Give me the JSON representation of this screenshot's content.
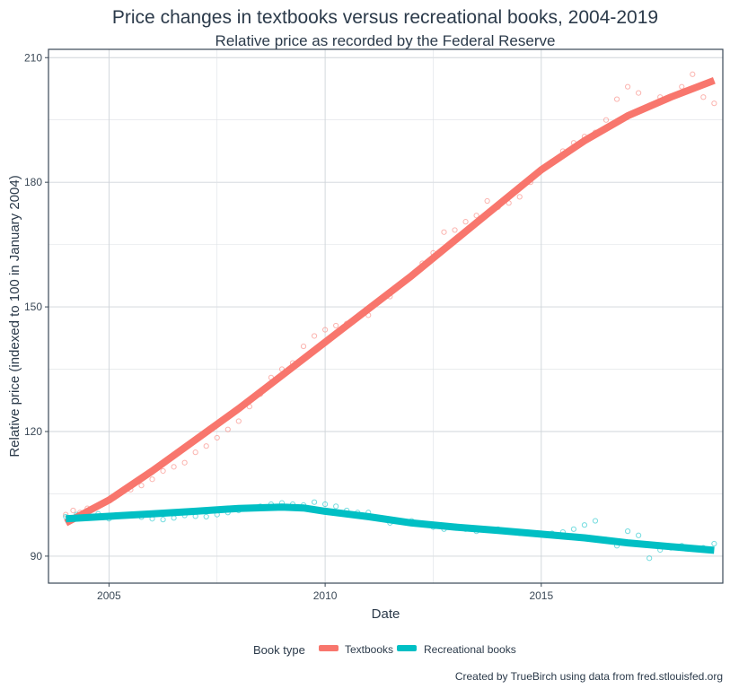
{
  "chart_data": {
    "type": "scatter",
    "title": "Price changes in textbooks versus recreational books, 2004-2019",
    "subtitle": "Relative price as recorded by the Federal Reserve",
    "xlabel": "Date",
    "ylabel": "Relative price (indexed to 100 in January 2004)",
    "caption": "Created by TrueBirch using data from fred.stlouisfed.org",
    "xlim": [
      2003.6,
      2019.2
    ],
    "ylim": [
      83.5,
      212
    ],
    "x_ticks": [
      2005,
      2010,
      2015
    ],
    "y_ticks": [
      90,
      120,
      150,
      180,
      210
    ],
    "grid": true,
    "legend": {
      "title": "Book type",
      "placement": "bottom"
    },
    "series": [
      {
        "name": "Textbooks",
        "color": "#f8766d",
        "trend": [
          [
            2004.0,
            98.0
          ],
          [
            2005.0,
            103.5
          ],
          [
            2006.0,
            110.5
          ],
          [
            2007.0,
            118.0
          ],
          [
            2008.0,
            125.5
          ],
          [
            2009.0,
            133.5
          ],
          [
            2010.0,
            141.5
          ],
          [
            2011.0,
            149.5
          ],
          [
            2012.0,
            157.5
          ],
          [
            2013.0,
            166.0
          ],
          [
            2014.0,
            174.5
          ],
          [
            2015.0,
            183.0
          ],
          [
            2016.0,
            190.0
          ],
          [
            2017.0,
            196.0
          ],
          [
            2018.0,
            200.5
          ],
          [
            2019.0,
            204.5
          ]
        ],
        "points": [
          [
            2004.0,
            100.0
          ],
          [
            2004.17,
            101.0
          ],
          [
            2004.33,
            100.5
          ],
          [
            2004.5,
            101.5
          ],
          [
            2004.75,
            102.0
          ],
          [
            2005.0,
            103.5
          ],
          [
            2005.25,
            105.0
          ],
          [
            2005.5,
            106.0
          ],
          [
            2005.75,
            107.0
          ],
          [
            2006.0,
            108.5
          ],
          [
            2006.25,
            110.5
          ],
          [
            2006.5,
            111.5
          ],
          [
            2006.75,
            112.5
          ],
          [
            2007.0,
            115.0
          ],
          [
            2007.25,
            116.5
          ],
          [
            2007.5,
            118.5
          ],
          [
            2007.75,
            120.5
          ],
          [
            2008.0,
            122.5
          ],
          [
            2008.25,
            126.0
          ],
          [
            2008.5,
            129.0
          ],
          [
            2008.75,
            133.0
          ],
          [
            2009.0,
            135.0
          ],
          [
            2009.25,
            136.5
          ],
          [
            2009.5,
            140.5
          ],
          [
            2009.75,
            143.0
          ],
          [
            2010.0,
            144.5
          ],
          [
            2010.25,
            145.5
          ],
          [
            2010.5,
            146.0
          ],
          [
            2010.75,
            147.5
          ],
          [
            2011.0,
            148.0
          ],
          [
            2011.25,
            151.5
          ],
          [
            2011.5,
            152.5
          ],
          [
            2011.75,
            155.5
          ],
          [
            2012.0,
            157.5
          ],
          [
            2012.25,
            160.5
          ],
          [
            2012.5,
            163.0
          ],
          [
            2012.75,
            168.0
          ],
          [
            2013.0,
            168.5
          ],
          [
            2013.25,
            170.5
          ],
          [
            2013.5,
            172.0
          ],
          [
            2013.75,
            175.5
          ],
          [
            2014.0,
            174.0
          ],
          [
            2014.25,
            175.0
          ],
          [
            2014.5,
            176.5
          ],
          [
            2014.75,
            180.0
          ],
          [
            2015.0,
            183.0
          ],
          [
            2015.25,
            185.0
          ],
          [
            2015.5,
            187.5
          ],
          [
            2015.75,
            189.5
          ],
          [
            2016.0,
            191.0
          ],
          [
            2016.25,
            192.0
          ],
          [
            2016.5,
            195.0
          ],
          [
            2016.75,
            200.0
          ],
          [
            2017.0,
            203.0
          ],
          [
            2017.25,
            201.5
          ],
          [
            2017.5,
            198.5
          ],
          [
            2017.75,
            200.5
          ],
          [
            2018.0,
            200.5
          ],
          [
            2018.25,
            203.0
          ],
          [
            2018.5,
            206.0
          ],
          [
            2018.75,
            200.5
          ],
          [
            2019.0,
            199.0
          ]
        ]
      },
      {
        "name": "Recreational books",
        "color": "#00bfc4",
        "trend": [
          [
            2004.0,
            99.0
          ],
          [
            2005.0,
            99.6
          ],
          [
            2006.0,
            100.2
          ],
          [
            2007.0,
            100.8
          ],
          [
            2008.0,
            101.5
          ],
          [
            2009.0,
            101.8
          ],
          [
            2009.5,
            101.6
          ],
          [
            2010.0,
            100.8
          ],
          [
            2011.0,
            99.5
          ],
          [
            2012.0,
            98.0
          ],
          [
            2013.0,
            97.0
          ],
          [
            2014.0,
            96.2
          ],
          [
            2015.0,
            95.3
          ],
          [
            2016.0,
            94.4
          ],
          [
            2017.0,
            93.2
          ],
          [
            2018.0,
            92.3
          ],
          [
            2019.0,
            91.4
          ]
        ],
        "points": [
          [
            2004.0,
            99.5
          ],
          [
            2004.25,
            100.0
          ],
          [
            2004.5,
            99.8
          ],
          [
            2004.75,
            100.2
          ],
          [
            2005.0,
            99.0
          ],
          [
            2005.25,
            99.6
          ],
          [
            2005.5,
            100.0
          ],
          [
            2005.75,
            99.4
          ],
          [
            2006.0,
            99.0
          ],
          [
            2006.25,
            98.8
          ],
          [
            2006.5,
            99.2
          ],
          [
            2006.75,
            99.8
          ],
          [
            2007.0,
            99.6
          ],
          [
            2007.25,
            99.5
          ],
          [
            2007.5,
            100.0
          ],
          [
            2007.75,
            100.5
          ],
          [
            2008.0,
            101.0
          ],
          [
            2008.25,
            101.5
          ],
          [
            2008.5,
            102.0
          ],
          [
            2008.75,
            102.5
          ],
          [
            2009.0,
            102.8
          ],
          [
            2009.25,
            102.5
          ],
          [
            2009.5,
            102.3
          ],
          [
            2009.75,
            103.0
          ],
          [
            2010.0,
            102.5
          ],
          [
            2010.25,
            102.0
          ],
          [
            2010.5,
            101.0
          ],
          [
            2010.75,
            100.5
          ],
          [
            2011.0,
            100.5
          ],
          [
            2011.25,
            99.0
          ],
          [
            2011.5,
            98.0
          ],
          [
            2011.75,
            98.5
          ],
          [
            2012.0,
            98.5
          ],
          [
            2012.25,
            97.8
          ],
          [
            2012.5,
            97.0
          ],
          [
            2012.75,
            96.5
          ],
          [
            2013.0,
            97.0
          ],
          [
            2013.25,
            96.5
          ],
          [
            2013.5,
            96.0
          ],
          [
            2013.75,
            96.5
          ],
          [
            2014.0,
            96.5
          ],
          [
            2014.25,
            96.0
          ],
          [
            2014.5,
            95.5
          ],
          [
            2014.75,
            95.5
          ],
          [
            2015.0,
            95.2
          ],
          [
            2015.25,
            95.5
          ],
          [
            2015.5,
            95.8
          ],
          [
            2015.75,
            96.5
          ],
          [
            2016.0,
            97.5
          ],
          [
            2016.25,
            98.5
          ],
          [
            2016.5,
            94.0
          ],
          [
            2016.75,
            92.5
          ],
          [
            2017.0,
            96.0
          ],
          [
            2017.25,
            95.0
          ],
          [
            2017.5,
            89.5
          ],
          [
            2017.75,
            91.5
          ],
          [
            2018.0,
            92.0
          ],
          [
            2018.25,
            92.5
          ],
          [
            2018.5,
            92.0
          ],
          [
            2018.75,
            92.0
          ],
          [
            2019.0,
            93.0
          ]
        ]
      }
    ]
  }
}
